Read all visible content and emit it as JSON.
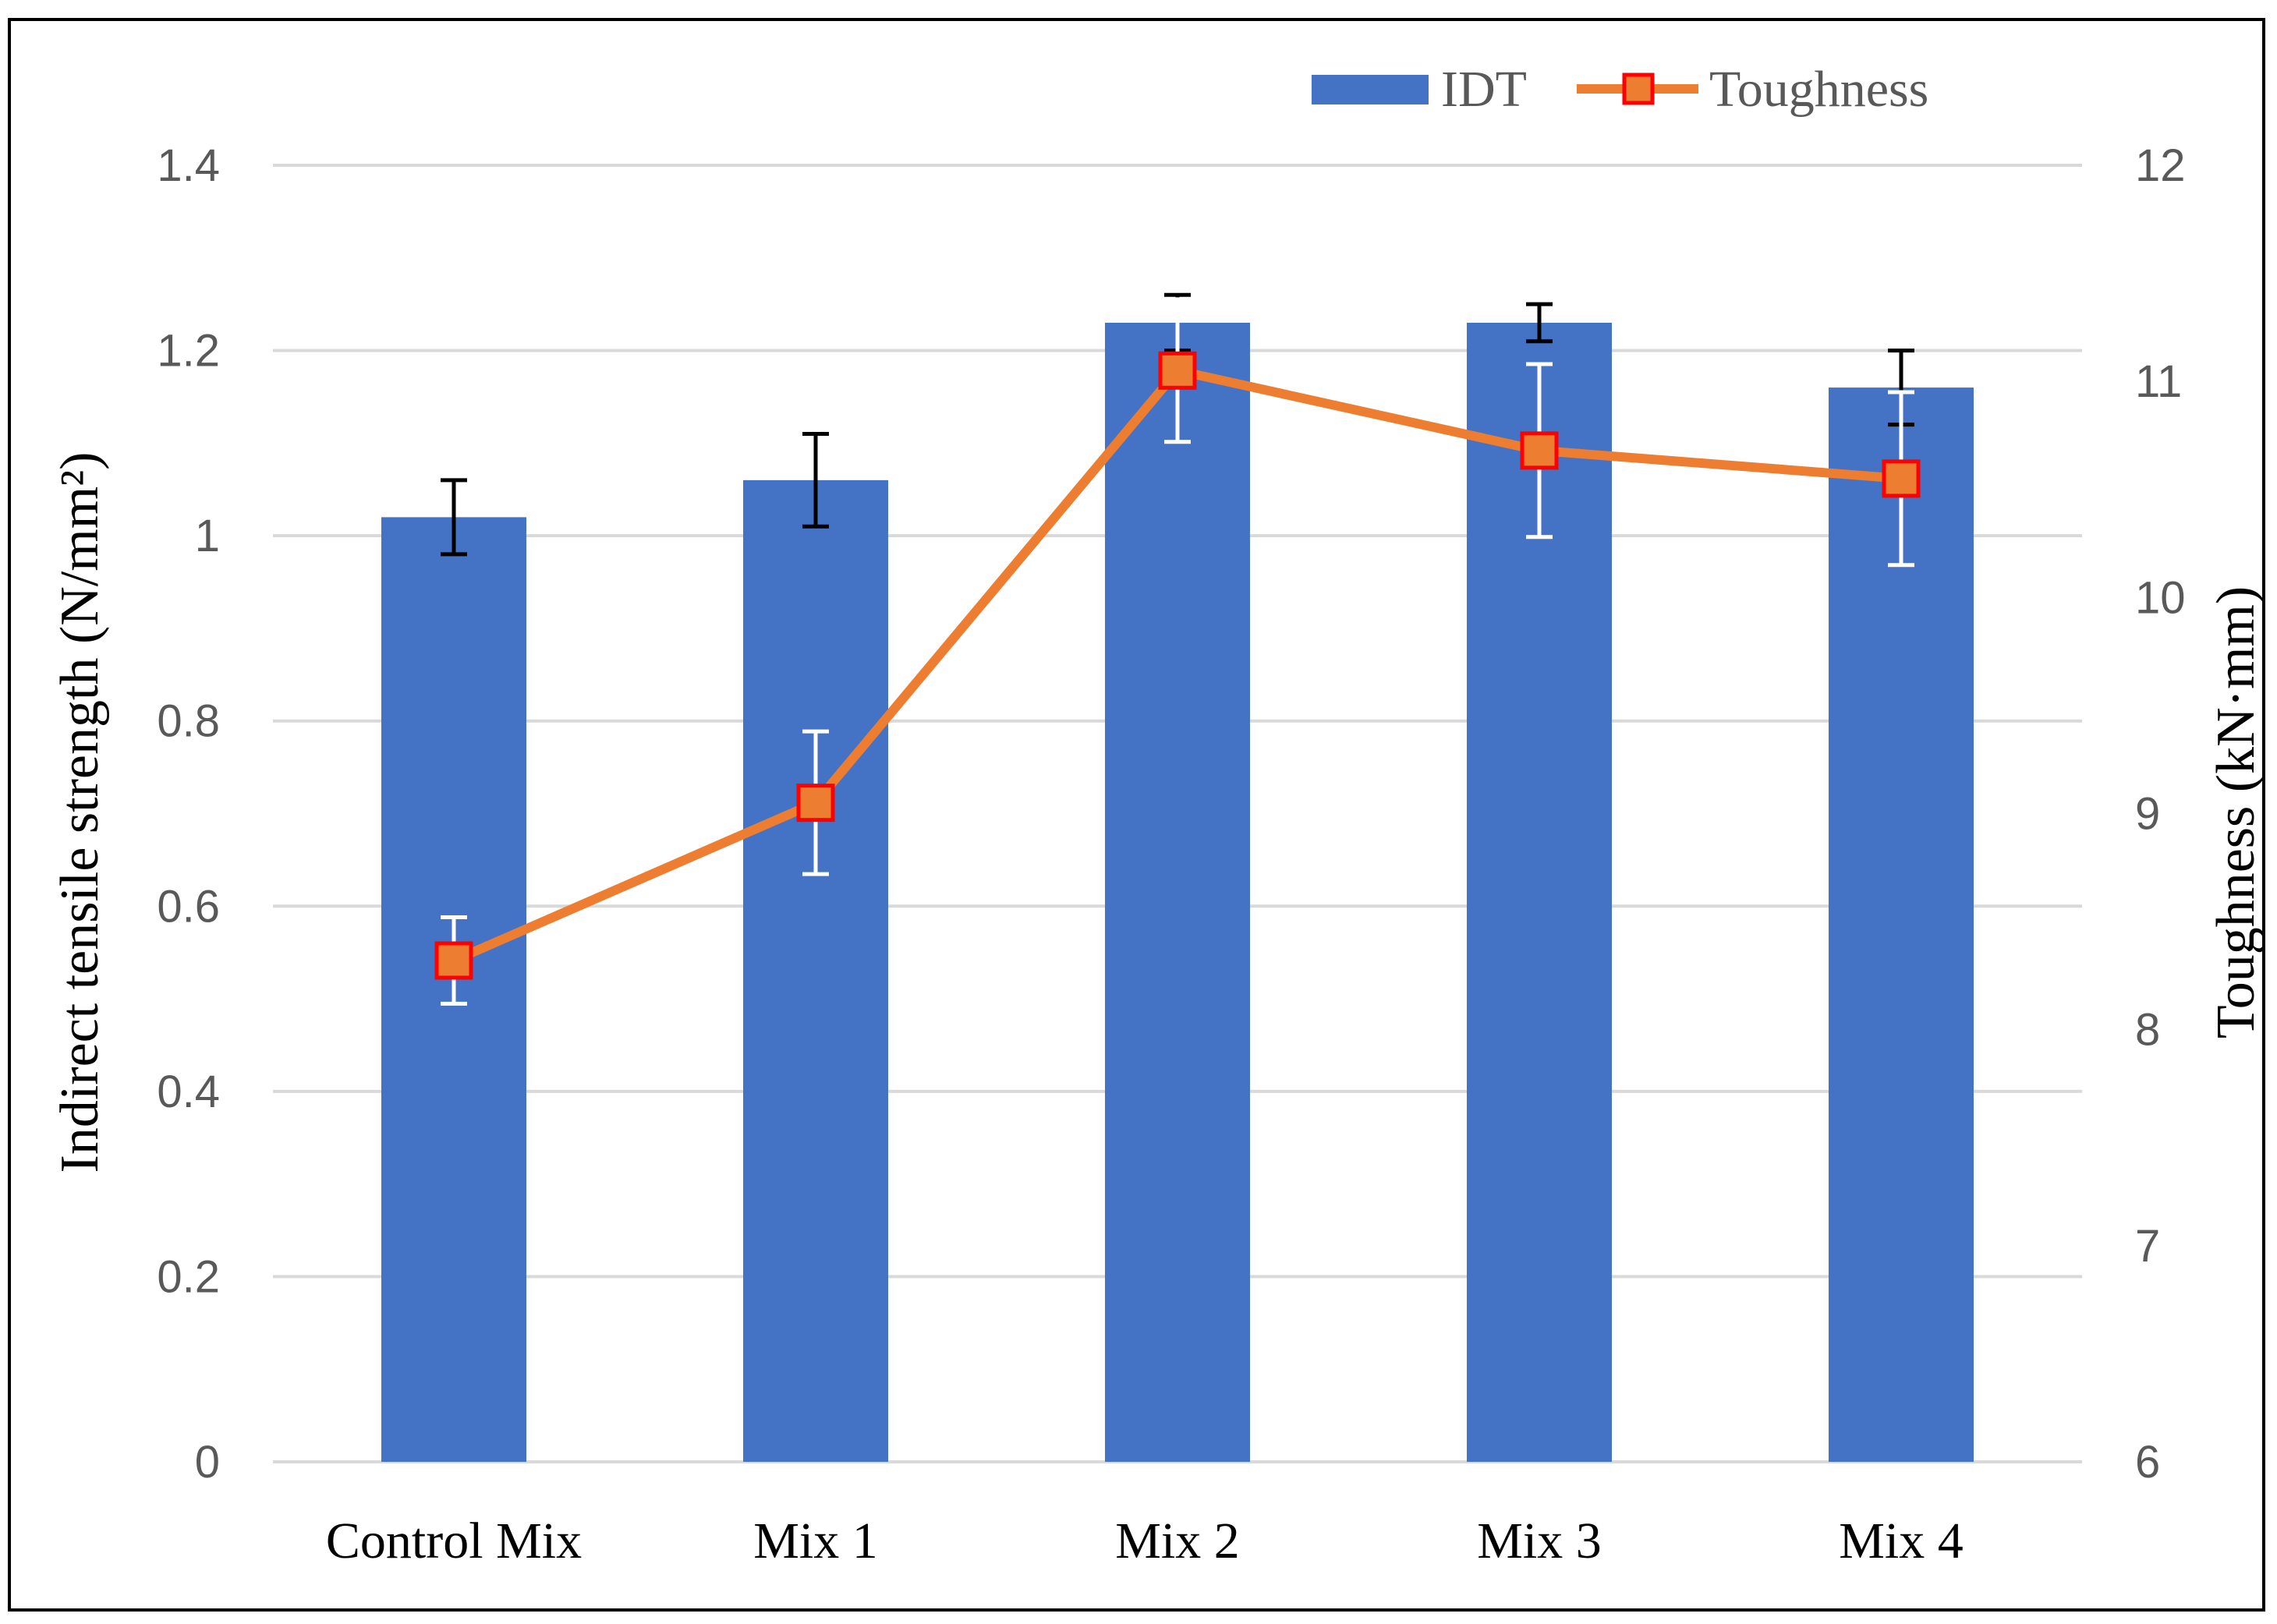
{
  "chart_data": {
    "type": "bar",
    "categories": [
      "Control Mix",
      "Mix 1",
      "Mix 2",
      "Mix 3",
      "Mix 4"
    ],
    "series": [
      {
        "name": "IDT",
        "type": "bar",
        "axis": "left",
        "values": [
          1.02,
          1.06,
          1.23,
          1.23,
          1.16
        ],
        "error": [
          0.04,
          0.05,
          0.03,
          0.02,
          0.04
        ],
        "color": "#4472C4"
      },
      {
        "name": "Toughness",
        "type": "line",
        "axis": "right",
        "values": [
          8.32,
          9.05,
          11.05,
          10.68,
          10.55
        ],
        "error": [
          0.2,
          0.33,
          0.33,
          0.4,
          0.4
        ],
        "color": "#ED7D31",
        "marker": "square",
        "marker_edge_color": "#FF0000"
      }
    ],
    "title": "",
    "xlabel": "",
    "ylabel": "Indirect tensile strength (N/mm²)",
    "y2label": "Toughness (kN·mm)",
    "ylim": [
      0,
      1.4
    ],
    "y2lim": [
      6,
      12
    ],
    "yticks": [
      "0",
      "0.2",
      "0.4",
      "0.6",
      "0.8",
      "1",
      "1.2",
      "1.4"
    ],
    "y2ticks": [
      "6",
      "7",
      "8",
      "9",
      "10",
      "11",
      "12"
    ],
    "grid": true,
    "legend": "top-right"
  }
}
